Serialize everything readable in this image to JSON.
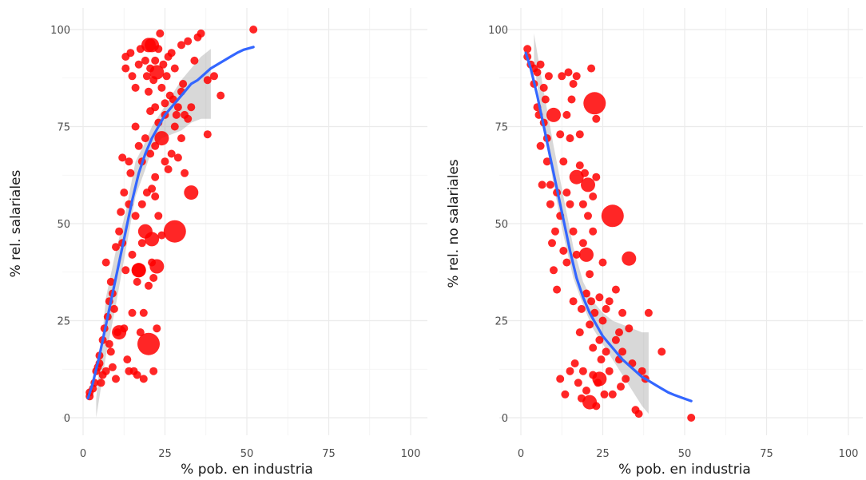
{
  "chart_data": [
    {
      "type": "scatter",
      "title": "",
      "xlabel": "% pob. en industria",
      "ylabel": "% rel. salariales",
      "xlim": [
        0,
        100
      ],
      "ylim": [
        0,
        100
      ],
      "xticks": [
        "0",
        "25",
        "50",
        "75",
        "100"
      ],
      "yticks": [
        "0",
        "25",
        "50",
        "75",
        "100"
      ],
      "grid": true,
      "point_color": "#ff0000",
      "trend_color": "#3366ff",
      "band_color": "#999999",
      "points": [
        [
          2,
          5.5,
          1
        ],
        [
          2,
          6.5,
          1
        ],
        [
          3,
          7.5,
          1
        ],
        [
          3.5,
          9,
          1
        ],
        [
          4,
          12,
          1
        ],
        [
          4.5,
          13,
          1
        ],
        [
          5,
          14,
          1
        ],
        [
          5,
          16,
          1
        ],
        [
          5.5,
          9,
          1
        ],
        [
          6,
          20,
          1
        ],
        [
          6,
          11,
          1
        ],
        [
          6.5,
          23,
          1
        ],
        [
          7,
          12,
          1
        ],
        [
          7,
          40,
          1
        ],
        [
          7.5,
          26,
          1
        ],
        [
          8,
          30,
          1
        ],
        [
          8,
          19,
          1
        ],
        [
          8.5,
          17,
          1
        ],
        [
          8.5,
          35,
          1
        ],
        [
          9,
          13,
          1
        ],
        [
          9,
          32,
          1
        ],
        [
          9.5,
          28,
          1
        ],
        [
          10,
          44,
          1
        ],
        [
          10,
          10,
          1
        ],
        [
          10.5,
          22,
          1
        ],
        [
          11,
          22,
          2
        ],
        [
          11,
          48,
          1
        ],
        [
          11.5,
          53,
          1
        ],
        [
          12,
          67,
          1
        ],
        [
          12,
          45,
          1
        ],
        [
          12.5,
          58,
          1
        ],
        [
          12.5,
          23,
          1
        ],
        [
          13,
          90,
          1
        ],
        [
          13,
          93,
          1
        ],
        [
          13,
          38,
          1
        ],
        [
          13.5,
          15,
          1
        ],
        [
          14,
          12,
          1
        ],
        [
          14,
          55,
          1
        ],
        [
          14,
          66,
          1
        ],
        [
          14.5,
          94,
          1
        ],
        [
          14.5,
          63,
          1
        ],
        [
          15,
          88,
          1
        ],
        [
          15,
          42,
          1
        ],
        [
          15,
          27,
          1
        ],
        [
          15.5,
          12,
          1
        ],
        [
          16,
          85,
          1
        ],
        [
          16,
          75,
          1
        ],
        [
          16,
          52,
          1
        ],
        [
          16.5,
          35,
          1
        ],
        [
          16.5,
          11,
          1
        ],
        [
          17,
          91,
          1
        ],
        [
          17,
          70,
          1
        ],
        [
          17,
          38,
          2
        ],
        [
          17.5,
          95,
          1
        ],
        [
          17.5,
          22,
          1
        ],
        [
          18,
          55,
          1
        ],
        [
          18,
          66,
          1
        ],
        [
          18,
          45,
          1
        ],
        [
          18.5,
          27,
          1
        ],
        [
          18.5,
          10,
          1
        ],
        [
          19,
          92,
          1
        ],
        [
          19,
          72,
          1
        ],
        [
          19,
          48,
          2
        ],
        [
          19.5,
          88,
          1
        ],
        [
          19.5,
          58,
          1
        ],
        [
          20,
          96,
          2
        ],
        [
          20,
          84,
          1
        ],
        [
          20,
          34,
          1
        ],
        [
          20.5,
          90,
          1
        ],
        [
          20.5,
          68,
          1
        ],
        [
          20.5,
          79,
          1
        ],
        [
          21,
          59,
          1
        ],
        [
          21,
          46,
          2
        ],
        [
          21,
          40,
          1
        ],
        [
          21.5,
          87,
          1
        ],
        [
          21.5,
          36,
          1
        ],
        [
          21.5,
          12,
          1
        ],
        [
          22,
          80,
          1
        ],
        [
          22,
          92,
          1
        ],
        [
          22,
          70,
          1
        ],
        [
          22,
          62,
          1
        ],
        [
          22,
          57,
          1
        ],
        [
          22.5,
          89,
          2
        ],
        [
          22.5,
          39,
          2
        ],
        [
          22.5,
          23,
          1
        ],
        [
          23,
          76,
          1
        ],
        [
          23,
          95,
          1
        ],
        [
          23,
          52,
          1
        ],
        [
          23.5,
          99,
          1
        ],
        [
          24,
          85,
          1
        ],
        [
          24,
          72,
          2
        ],
        [
          24,
          47,
          1
        ],
        [
          24.5,
          91,
          1
        ],
        [
          25,
          78,
          1
        ],
        [
          25,
          81,
          1
        ],
        [
          25,
          66,
          1
        ],
        [
          25.5,
          88,
          1
        ],
        [
          26,
          93,
          1
        ],
        [
          26,
          64,
          1
        ],
        [
          26.5,
          83,
          1
        ],
        [
          27,
          94,
          1
        ],
        [
          27,
          68,
          1
        ],
        [
          27.5,
          82,
          1
        ],
        [
          28,
          90,
          1
        ],
        [
          28,
          75,
          1
        ],
        [
          28.5,
          78,
          1
        ],
        [
          29,
          80,
          1
        ],
        [
          29,
          67,
          1
        ],
        [
          30,
          84,
          1
        ],
        [
          30,
          72,
          1
        ],
        [
          30,
          96,
          1
        ],
        [
          30.5,
          86,
          1
        ],
        [
          31,
          78,
          1
        ],
        [
          31,
          63,
          1
        ],
        [
          32,
          97,
          1
        ],
        [
          32,
          77,
          1
        ],
        [
          33,
          80,
          1
        ],
        [
          33,
          58,
          2
        ],
        [
          34,
          92,
          1
        ],
        [
          35,
          98,
          1
        ],
        [
          36,
          99,
          1
        ],
        [
          38,
          87,
          1
        ],
        [
          38,
          73,
          1
        ],
        [
          40,
          88,
          1
        ],
        [
          42,
          83,
          1
        ],
        [
          52,
          100,
          1
        ],
        [
          20,
          19,
          3
        ],
        [
          28,
          48,
          3
        ],
        [
          21,
          96,
          2
        ],
        [
          17,
          38,
          2
        ]
      ],
      "trend": [
        [
          1.5,
          5
        ],
        [
          3,
          9
        ],
        [
          5,
          16
        ],
        [
          7,
          24
        ],
        [
          9,
          32
        ],
        [
          11,
          40
        ],
        [
          13,
          48
        ],
        [
          15,
          56
        ],
        [
          17,
          63
        ],
        [
          19,
          68
        ],
        [
          21,
          72
        ],
        [
          23,
          75
        ],
        [
          25,
          78
        ],
        [
          27,
          80
        ],
        [
          29,
          82
        ],
        [
          31,
          84
        ],
        [
          33,
          86
        ],
        [
          35,
          87
        ],
        [
          37,
          88.5
        ],
        [
          39,
          90
        ],
        [
          41,
          91
        ],
        [
          43,
          92
        ],
        [
          45,
          93
        ],
        [
          47,
          94
        ],
        [
          49,
          94.8
        ],
        [
          52,
          95.5
        ]
      ],
      "band": [
        [
          4,
          0,
          5
        ],
        [
          7,
          16,
          31
        ],
        [
          10,
          29,
          43
        ],
        [
          13,
          43,
          53
        ],
        [
          16,
          57,
          66
        ],
        [
          19,
          64,
          71
        ],
        [
          21,
          69,
          75
        ],
        [
          24,
          72,
          79
        ],
        [
          27,
          73,
          83
        ],
        [
          30,
          74,
          87
        ],
        [
          33,
          76,
          90
        ],
        [
          36,
          77,
          93
        ],
        [
          39,
          77,
          95
        ]
      ]
    },
    {
      "type": "scatter",
      "title": "",
      "xlabel": "% pob. en industria",
      "ylabel": "% rel. no salariales",
      "xlim": [
        0,
        100
      ],
      "ylim": [
        0,
        100
      ],
      "xticks": [
        "0",
        "25",
        "50",
        "75",
        "100"
      ],
      "yticks": [
        "0",
        "25",
        "50",
        "75",
        "100"
      ],
      "grid": true,
      "point_color": "#ff0000",
      "trend_color": "#3366ff",
      "band_color": "#999999",
      "points": [
        [
          2,
          95,
          1
        ],
        [
          2,
          93,
          1
        ],
        [
          3,
          91,
          1
        ],
        [
          4,
          90,
          1
        ],
        [
          4,
          86,
          1
        ],
        [
          5,
          89,
          1
        ],
        [
          5,
          80,
          1
        ],
        [
          5.5,
          78,
          1
        ],
        [
          6,
          91,
          1
        ],
        [
          6,
          70,
          1
        ],
        [
          6.5,
          60,
          1
        ],
        [
          7,
          85,
          1
        ],
        [
          7,
          76,
          1
        ],
        [
          7.5,
          82,
          1
        ],
        [
          8,
          72,
          1
        ],
        [
          8,
          66,
          1
        ],
        [
          8.5,
          88,
          1
        ],
        [
          9,
          60,
          1
        ],
        [
          9,
          55,
          1
        ],
        [
          9.5,
          45,
          1
        ],
        [
          10,
          78,
          2
        ],
        [
          10,
          38,
          1
        ],
        [
          10.5,
          48,
          1
        ],
        [
          11,
          58,
          1
        ],
        [
          11,
          33,
          1
        ],
        [
          12,
          73,
          1
        ],
        [
          12,
          52,
          1
        ],
        [
          12,
          10,
          1
        ],
        [
          12.5,
          88,
          1
        ],
        [
          13,
          66,
          1
        ],
        [
          13,
          43,
          1
        ],
        [
          13.5,
          6,
          1
        ],
        [
          14,
          78,
          1
        ],
        [
          14,
          58,
          1
        ],
        [
          14,
          40,
          1
        ],
        [
          14.5,
          89,
          1
        ],
        [
          15,
          55,
          1
        ],
        [
          15,
          72,
          1
        ],
        [
          15,
          12,
          1
        ],
        [
          15.5,
          82,
          1
        ],
        [
          16,
          48,
          1
        ],
        [
          16,
          86,
          1
        ],
        [
          16,
          30,
          1
        ],
        [
          16.5,
          14,
          1
        ],
        [
          17,
          62,
          2
        ],
        [
          17,
          88,
          1
        ],
        [
          17,
          42,
          1
        ],
        [
          17.5,
          9,
          1
        ],
        [
          18,
          65,
          1
        ],
        [
          18,
          73,
          1
        ],
        [
          18,
          22,
          1
        ],
        [
          18.5,
          28,
          1
        ],
        [
          18.5,
          5,
          1
        ],
        [
          19,
          55,
          1
        ],
        [
          19,
          45,
          1
        ],
        [
          19,
          12,
          1
        ],
        [
          19.5,
          63,
          1
        ],
        [
          20,
          42,
          2
        ],
        [
          20,
          32,
          1
        ],
        [
          20,
          7,
          1
        ],
        [
          20.5,
          60,
          2
        ],
        [
          20.5,
          52,
          1
        ],
        [
          21,
          37,
          1
        ],
        [
          21,
          24,
          1
        ],
        [
          21,
          4,
          2
        ],
        [
          21.5,
          90,
          1
        ],
        [
          21.5,
          30,
          1
        ],
        [
          22,
          57,
          1
        ],
        [
          22,
          48,
          1
        ],
        [
          22,
          18,
          1
        ],
        [
          22,
          11,
          1
        ],
        [
          22.5,
          81,
          3
        ],
        [
          22.5,
          27,
          1
        ],
        [
          23,
          77,
          1
        ],
        [
          23,
          62,
          1
        ],
        [
          23,
          3,
          1
        ],
        [
          23.5,
          9,
          1
        ],
        [
          24,
          31,
          1
        ],
        [
          24,
          20,
          1
        ],
        [
          24,
          10,
          2
        ],
        [
          24.5,
          15,
          1
        ],
        [
          25,
          40,
          1
        ],
        [
          25,
          25,
          1
        ],
        [
          25.5,
          6,
          1
        ],
        [
          26,
          17,
          1
        ],
        [
          26,
          28,
          1
        ],
        [
          27,
          30,
          1
        ],
        [
          27,
          12,
          1
        ],
        [
          28,
          52,
          3
        ],
        [
          28,
          6,
          1
        ],
        [
          29,
          20,
          1
        ],
        [
          29,
          33,
          1
        ],
        [
          30,
          15,
          1
        ],
        [
          30,
          22,
          1
        ],
        [
          30.5,
          8,
          1
        ],
        [
          31,
          27,
          1
        ],
        [
          31,
          17,
          1
        ],
        [
          32,
          10,
          1
        ],
        [
          33,
          41,
          2
        ],
        [
          33,
          23,
          1
        ],
        [
          34,
          14,
          1
        ],
        [
          35,
          2,
          1
        ],
        [
          36,
          1,
          1
        ],
        [
          37,
          12,
          1
        ],
        [
          38,
          10,
          1
        ],
        [
          39,
          27,
          1
        ],
        [
          43,
          17,
          1
        ],
        [
          52,
          0,
          1
        ]
      ],
      "trend": [
        [
          1.5,
          94
        ],
        [
          3,
          90
        ],
        [
          5,
          83
        ],
        [
          7,
          75
        ],
        [
          9,
          67
        ],
        [
          11,
          59
        ],
        [
          13,
          51
        ],
        [
          15,
          43
        ],
        [
          17,
          36
        ],
        [
          19,
          31
        ],
        [
          21,
          27
        ],
        [
          23,
          24
        ],
        [
          25,
          21
        ],
        [
          27,
          19
        ],
        [
          29,
          17
        ],
        [
          31,
          15
        ],
        [
          33,
          13.5
        ],
        [
          35,
          12
        ],
        [
          37,
          10.5
        ],
        [
          39,
          9.5
        ],
        [
          41,
          8.5
        ],
        [
          43,
          7.5
        ],
        [
          45,
          6.5
        ],
        [
          47,
          5.8
        ],
        [
          49,
          5.2
        ],
        [
          52,
          4.3
        ]
      ],
      "band": [
        [
          4,
          91,
          99
        ],
        [
          7,
          75,
          84
        ],
        [
          10,
          60,
          70
        ],
        [
          13,
          47,
          57
        ],
        [
          16,
          36,
          44
        ],
        [
          19,
          29,
          35
        ],
        [
          22,
          23,
          30
        ],
        [
          25,
          19,
          27
        ],
        [
          28,
          15,
          25
        ],
        [
          31,
          11,
          24
        ],
        [
          34,
          7,
          23
        ],
        [
          37,
          3,
          22
        ],
        [
          39,
          1,
          22
        ]
      ]
    }
  ]
}
